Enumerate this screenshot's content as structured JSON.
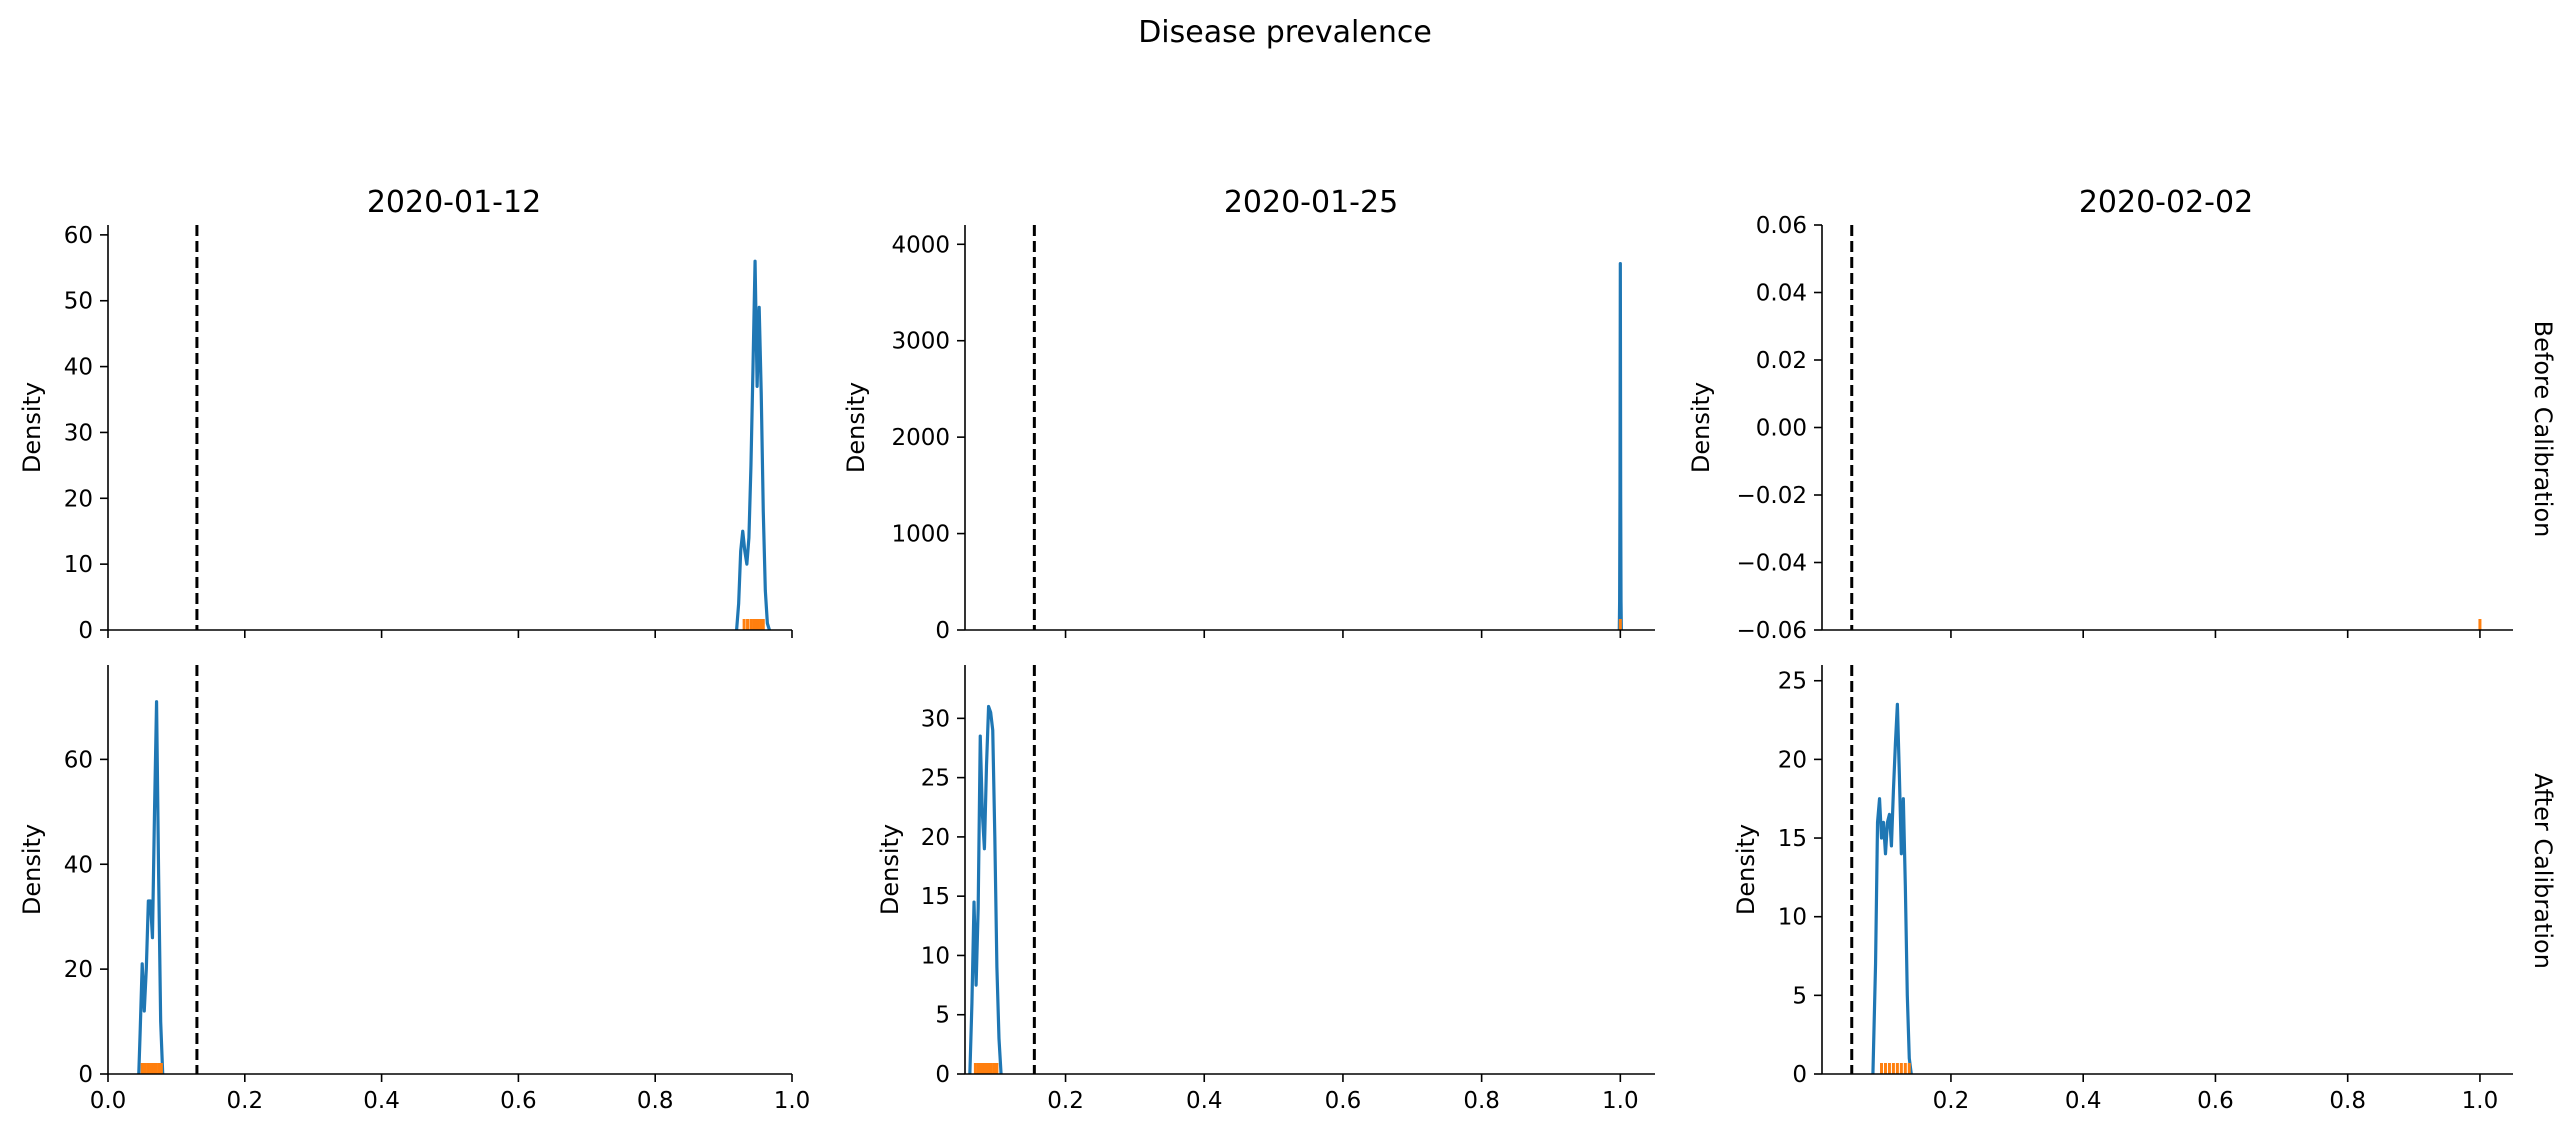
{
  "chart_data": {
    "type": "density-grid",
    "title": "Disease prevalence",
    "columns": [
      "2020-01-12",
      "2020-01-25",
      "2020-02-02"
    ],
    "rows": [
      "Before Calibration",
      "After Calibration"
    ],
    "ylabel": "Density",
    "colors": {
      "density": "#1f77b4",
      "rug": "#ff7f0e",
      "reference": "#000000"
    },
    "panels": [
      {
        "id": "before-2020-01-12",
        "row": 0,
        "col": 0,
        "xlim": [
          0.0,
          1.0
        ],
        "ylim": [
          0,
          61.5
        ],
        "yticks": [
          0,
          10,
          20,
          30,
          40,
          50,
          60
        ],
        "ytick_labels": [
          "0",
          "10",
          "20",
          "30",
          "40",
          "50",
          "60"
        ],
        "xticks": [
          0.0,
          0.2,
          0.4,
          0.6,
          0.8,
          1.0
        ],
        "xtick_labels": [],
        "reference": 0.13,
        "curve": [
          [
            0.919,
            0
          ],
          [
            0.922,
            4
          ],
          [
            0.925,
            12
          ],
          [
            0.928,
            15
          ],
          [
            0.931,
            12
          ],
          [
            0.934,
            10
          ],
          [
            0.937,
            14
          ],
          [
            0.94,
            25
          ],
          [
            0.943,
            40
          ],
          [
            0.946,
            56
          ],
          [
            0.949,
            37
          ],
          [
            0.952,
            49
          ],
          [
            0.955,
            36
          ],
          [
            0.958,
            18
          ],
          [
            0.961,
            6
          ],
          [
            0.964,
            1
          ],
          [
            0.967,
            0
          ]
        ],
        "rug": [
          0.93,
          0.935,
          0.94,
          0.944,
          0.948,
          0.951,
          0.955,
          0.958
        ]
      },
      {
        "id": "before-2020-01-25",
        "row": 0,
        "col": 1,
        "xlim": [
          0.055,
          1.05
        ],
        "ylim": [
          0,
          4200
        ],
        "yticks": [
          0,
          1000,
          2000,
          3000,
          4000
        ],
        "ytick_labels": [
          "0",
          "1000",
          "2000",
          "3000",
          "4000"
        ],
        "xticks": [
          0.2,
          0.4,
          0.6,
          0.8,
          1.0
        ],
        "xtick_labels": [],
        "reference": 0.155,
        "curve": [
          [
            0.9985,
            0
          ],
          [
            0.999,
            300
          ],
          [
            0.9995,
            1400
          ],
          [
            1.0,
            3800
          ],
          [
            1.0005,
            1400
          ],
          [
            1.001,
            300
          ],
          [
            1.0015,
            0
          ]
        ],
        "rug": [
          1.0
        ]
      },
      {
        "id": "before-2020-02-02",
        "row": 0,
        "col": 2,
        "xlim": [
          0.005,
          1.05
        ],
        "ylim": [
          -0.06,
          0.06
        ],
        "yticks": [
          -0.06,
          -0.04,
          -0.02,
          0.0,
          0.02,
          0.04,
          0.06
        ],
        "ytick_labels": [
          "−0.06",
          "−0.04",
          "−0.02",
          "0.00",
          "0.02",
          "0.04",
          "0.06"
        ],
        "xticks": [
          0.2,
          0.4,
          0.6,
          0.8,
          1.0
        ],
        "xtick_labels": [],
        "reference": 0.05,
        "curve": [],
        "rug": [
          1.0
        ]
      },
      {
        "id": "after-2020-01-12",
        "row": 1,
        "col": 0,
        "xlim": [
          0.0,
          1.0
        ],
        "ylim": [
          0,
          78
        ],
        "yticks": [
          0,
          20,
          40,
          60
        ],
        "ytick_labels": [
          "0",
          "20",
          "40",
          "60"
        ],
        "xticks": [
          0.0,
          0.2,
          0.4,
          0.6,
          0.8,
          1.0
        ],
        "xtick_labels": [
          "0.0",
          "0.2",
          "0.4",
          "0.6",
          "0.8",
          "1.0"
        ],
        "reference": 0.13,
        "curve": [
          [
            0.045,
            0
          ],
          [
            0.047,
            8
          ],
          [
            0.05,
            21
          ],
          [
            0.053,
            12
          ],
          [
            0.056,
            20
          ],
          [
            0.059,
            33
          ],
          [
            0.062,
            33
          ],
          [
            0.065,
            26
          ],
          [
            0.068,
            50
          ],
          [
            0.071,
            71
          ],
          [
            0.074,
            38
          ],
          [
            0.077,
            10
          ],
          [
            0.08,
            0
          ]
        ],
        "rug": [
          0.05,
          0.054,
          0.058,
          0.061,
          0.064,
          0.067,
          0.07,
          0.074,
          0.078
        ]
      },
      {
        "id": "after-2020-01-25",
        "row": 1,
        "col": 1,
        "xlim": [
          0.055,
          1.05
        ],
        "ylim": [
          0,
          34.5
        ],
        "yticks": [
          0,
          5,
          10,
          15,
          20,
          25,
          30
        ],
        "ytick_labels": [
          "0",
          "5",
          "10",
          "15",
          "20",
          "25",
          "30"
        ],
        "xticks": [
          0.2,
          0.4,
          0.6,
          0.8,
          1.0
        ],
        "xtick_labels": [
          "0.2",
          "0.4",
          "0.6",
          "0.8",
          "1.0"
        ],
        "reference": 0.155,
        "curve": [
          [
            0.062,
            0
          ],
          [
            0.065,
            6
          ],
          [
            0.068,
            14.5
          ],
          [
            0.071,
            7.5
          ],
          [
            0.074,
            14
          ],
          [
            0.077,
            28.5
          ],
          [
            0.08,
            22
          ],
          [
            0.083,
            19
          ],
          [
            0.086,
            26
          ],
          [
            0.089,
            31
          ],
          [
            0.092,
            30.5
          ],
          [
            0.095,
            29
          ],
          [
            0.098,
            20
          ],
          [
            0.101,
            9
          ],
          [
            0.104,
            3
          ],
          [
            0.107,
            0
          ]
        ],
        "rug": [
          0.07,
          0.074,
          0.078,
          0.081,
          0.084,
          0.087,
          0.09,
          0.093,
          0.097,
          0.101
        ]
      },
      {
        "id": "after-2020-02-02",
        "row": 1,
        "col": 2,
        "xlim": [
          0.005,
          1.05
        ],
        "ylim": [
          0,
          26
        ],
        "yticks": [
          0,
          5,
          10,
          15,
          20,
          25
        ],
        "ytick_labels": [
          "0",
          "5",
          "10",
          "15",
          "20",
          "25"
        ],
        "xticks": [
          0.2,
          0.4,
          0.6,
          0.8,
          1.0
        ],
        "xtick_labels": [
          "0.2",
          "0.4",
          "0.6",
          "0.8",
          "1.0"
        ],
        "reference": 0.05,
        "curve": [
          [
            0.082,
            0
          ],
          [
            0.086,
            7
          ],
          [
            0.089,
            16
          ],
          [
            0.092,
            17.5
          ],
          [
            0.095,
            15
          ],
          [
            0.098,
            16
          ],
          [
            0.101,
            14
          ],
          [
            0.104,
            16
          ],
          [
            0.107,
            16.5
          ],
          [
            0.11,
            14.5
          ],
          [
            0.113,
            18
          ],
          [
            0.116,
            21
          ],
          [
            0.119,
            23.5
          ],
          [
            0.122,
            19
          ],
          [
            0.125,
            14
          ],
          [
            0.128,
            17.5
          ],
          [
            0.131,
            12
          ],
          [
            0.134,
            5
          ],
          [
            0.137,
            1
          ],
          [
            0.14,
            0
          ]
        ],
        "rug": [
          0.095,
          0.101,
          0.107,
          0.113,
          0.119,
          0.125,
          0.131,
          0.137
        ]
      }
    ]
  }
}
